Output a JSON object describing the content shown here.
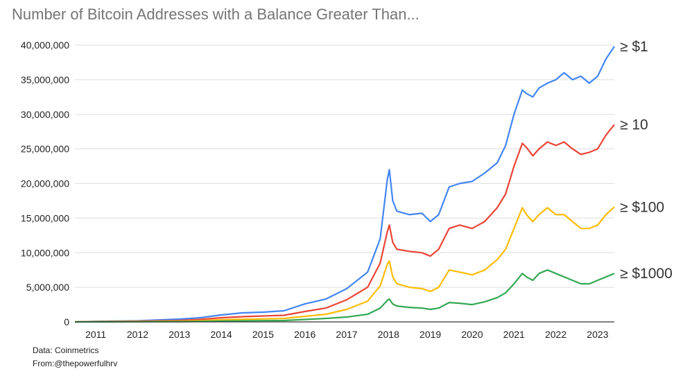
{
  "colors": {
    "ge_1": "#4285f4",
    "ge_10": "#ea4335",
    "ge_100": "#fbbc04",
    "ge_1000": "#34a853",
    "grid": "#dddddd",
    "axis": "#333333",
    "tick_text": "#222222"
  },
  "footer": {
    "source": "Data: Coinmetrics",
    "credit": "From:@thepowerfulhrv"
  },
  "chart_data": {
    "type": "line",
    "title": "Number of Bitcoin Addresses with a Balance Greater Than...",
    "xlabel": "",
    "ylabel": "",
    "xlim": [
      2010.5,
      2023.4
    ],
    "ylim": [
      0,
      40000000
    ],
    "grid": true,
    "legend": "right-end labels",
    "x_ticks": [
      "2011",
      "2012",
      "2013",
      "2014",
      "2015",
      "2016",
      "2017",
      "2018",
      "2019",
      "2020",
      "2021",
      "2022",
      "2023"
    ],
    "y_ticks": [
      "0",
      "5,000,000",
      "10,000,000",
      "15,000,000",
      "20,000,000",
      "25,000,000",
      "30,000,000",
      "35,000,000",
      "40,000,000"
    ],
    "series": [
      {
        "name": "≥ $1",
        "points": [
          [
            2010.5,
            0
          ],
          [
            2011,
            80000
          ],
          [
            2012,
            150000
          ],
          [
            2013,
            400000
          ],
          [
            2013.5,
            600000
          ],
          [
            2014,
            1000000
          ],
          [
            2014.5,
            1300000
          ],
          [
            2015,
            1400000
          ],
          [
            2015.5,
            1600000
          ],
          [
            2016,
            2600000
          ],
          [
            2016.5,
            3300000
          ],
          [
            2017,
            4800000
          ],
          [
            2017.5,
            7200000
          ],
          [
            2017.8,
            12000000
          ],
          [
            2017.97,
            20500000
          ],
          [
            2018.02,
            22000000
          ],
          [
            2018.1,
            17500000
          ],
          [
            2018.2,
            16000000
          ],
          [
            2018.5,
            15500000
          ],
          [
            2018.8,
            15700000
          ],
          [
            2019,
            14500000
          ],
          [
            2019.2,
            15500000
          ],
          [
            2019.45,
            19500000
          ],
          [
            2019.7,
            20000000
          ],
          [
            2020,
            20300000
          ],
          [
            2020.3,
            21500000
          ],
          [
            2020.6,
            23000000
          ],
          [
            2020.8,
            25500000
          ],
          [
            2021,
            30000000
          ],
          [
            2021.2,
            33500000
          ],
          [
            2021.3,
            33000000
          ],
          [
            2021.45,
            32500000
          ],
          [
            2021.6,
            33800000
          ],
          [
            2021.8,
            34500000
          ],
          [
            2022,
            35000000
          ],
          [
            2022.2,
            36000000
          ],
          [
            2022.4,
            35000000
          ],
          [
            2022.6,
            35500000
          ],
          [
            2022.8,
            34500000
          ],
          [
            2023,
            35500000
          ],
          [
            2023.2,
            38000000
          ],
          [
            2023.4,
            39800000
          ]
        ]
      },
      {
        "name": "≥ 10",
        "points": [
          [
            2010.5,
            0
          ],
          [
            2011,
            50000
          ],
          [
            2012,
            100000
          ],
          [
            2013,
            200000
          ],
          [
            2013.5,
            350000
          ],
          [
            2014,
            600000
          ],
          [
            2014.5,
            750000
          ],
          [
            2015,
            850000
          ],
          [
            2015.5,
            950000
          ],
          [
            2016,
            1500000
          ],
          [
            2016.5,
            2000000
          ],
          [
            2017,
            3200000
          ],
          [
            2017.5,
            5000000
          ],
          [
            2017.8,
            8500000
          ],
          [
            2017.97,
            13000000
          ],
          [
            2018.02,
            14000000
          ],
          [
            2018.1,
            11500000
          ],
          [
            2018.2,
            10500000
          ],
          [
            2018.5,
            10200000
          ],
          [
            2018.8,
            10000000
          ],
          [
            2019,
            9500000
          ],
          [
            2019.2,
            10500000
          ],
          [
            2019.45,
            13500000
          ],
          [
            2019.7,
            14000000
          ],
          [
            2020,
            13500000
          ],
          [
            2020.3,
            14500000
          ],
          [
            2020.6,
            16500000
          ],
          [
            2020.8,
            18500000
          ],
          [
            2021,
            22500000
          ],
          [
            2021.2,
            25800000
          ],
          [
            2021.3,
            25200000
          ],
          [
            2021.45,
            24000000
          ],
          [
            2021.6,
            25000000
          ],
          [
            2021.8,
            26000000
          ],
          [
            2022,
            25500000
          ],
          [
            2022.2,
            26000000
          ],
          [
            2022.4,
            25000000
          ],
          [
            2022.6,
            24200000
          ],
          [
            2022.8,
            24500000
          ],
          [
            2023,
            25000000
          ],
          [
            2023.2,
            27000000
          ],
          [
            2023.4,
            28500000
          ]
        ]
      },
      {
        "name": "≥ $100",
        "points": [
          [
            2010.5,
            0
          ],
          [
            2011,
            30000
          ],
          [
            2012,
            50000
          ],
          [
            2013,
            100000
          ],
          [
            2013.5,
            180000
          ],
          [
            2014,
            300000
          ],
          [
            2014.5,
            380000
          ],
          [
            2015,
            430000
          ],
          [
            2015.5,
            500000
          ],
          [
            2016,
            800000
          ],
          [
            2016.5,
            1100000
          ],
          [
            2017,
            1800000
          ],
          [
            2017.5,
            3000000
          ],
          [
            2017.8,
            5200000
          ],
          [
            2017.97,
            8300000
          ],
          [
            2018.02,
            8800000
          ],
          [
            2018.1,
            6500000
          ],
          [
            2018.2,
            5500000
          ],
          [
            2018.5,
            5000000
          ],
          [
            2018.8,
            4800000
          ],
          [
            2019,
            4400000
          ],
          [
            2019.2,
            5000000
          ],
          [
            2019.45,
            7500000
          ],
          [
            2019.7,
            7200000
          ],
          [
            2020,
            6800000
          ],
          [
            2020.3,
            7500000
          ],
          [
            2020.6,
            9000000
          ],
          [
            2020.8,
            10500000
          ],
          [
            2021,
            13500000
          ],
          [
            2021.2,
            16500000
          ],
          [
            2021.3,
            15500000
          ],
          [
            2021.45,
            14500000
          ],
          [
            2021.6,
            15500000
          ],
          [
            2021.8,
            16500000
          ],
          [
            2022,
            15500000
          ],
          [
            2022.2,
            15500000
          ],
          [
            2022.4,
            14500000
          ],
          [
            2022.6,
            13500000
          ],
          [
            2022.8,
            13500000
          ],
          [
            2023,
            14000000
          ],
          [
            2023.2,
            15500000
          ],
          [
            2023.4,
            16600000
          ]
        ]
      },
      {
        "name": "≥ $1000",
        "points": [
          [
            2010.5,
            0
          ],
          [
            2011,
            10000
          ],
          [
            2012,
            20000
          ],
          [
            2013,
            40000
          ],
          [
            2013.5,
            70000
          ],
          [
            2014,
            110000
          ],
          [
            2014.5,
            150000
          ],
          [
            2015,
            180000
          ],
          [
            2015.5,
            200000
          ],
          [
            2016,
            350000
          ],
          [
            2016.5,
            500000
          ],
          [
            2017,
            700000
          ],
          [
            2017.5,
            1100000
          ],
          [
            2017.8,
            2000000
          ],
          [
            2017.97,
            3100000
          ],
          [
            2018.02,
            3300000
          ],
          [
            2018.1,
            2600000
          ],
          [
            2018.2,
            2300000
          ],
          [
            2018.5,
            2100000
          ],
          [
            2018.8,
            2000000
          ],
          [
            2019,
            1800000
          ],
          [
            2019.2,
            2000000
          ],
          [
            2019.45,
            2800000
          ],
          [
            2019.7,
            2700000
          ],
          [
            2020,
            2500000
          ],
          [
            2020.3,
            2900000
          ],
          [
            2020.6,
            3500000
          ],
          [
            2020.8,
            4200000
          ],
          [
            2021,
            5500000
          ],
          [
            2021.2,
            7000000
          ],
          [
            2021.3,
            6500000
          ],
          [
            2021.45,
            6000000
          ],
          [
            2021.6,
            7000000
          ],
          [
            2021.8,
            7500000
          ],
          [
            2022,
            7000000
          ],
          [
            2022.2,
            6500000
          ],
          [
            2022.4,
            6000000
          ],
          [
            2022.6,
            5500000
          ],
          [
            2022.8,
            5500000
          ],
          [
            2023,
            6000000
          ],
          [
            2023.2,
            6500000
          ],
          [
            2023.4,
            7000000
          ]
        ]
      }
    ]
  }
}
